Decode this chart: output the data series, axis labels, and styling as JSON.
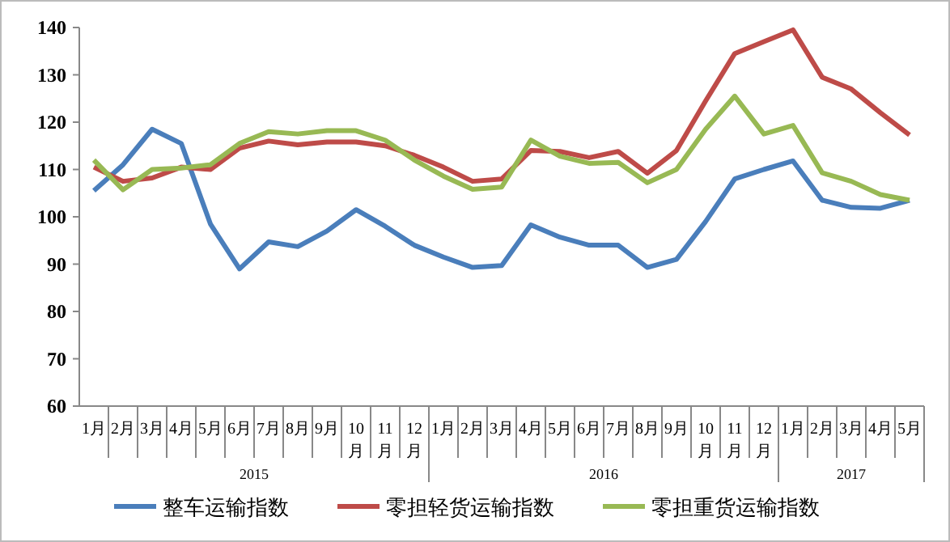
{
  "chart_data": {
    "type": "line",
    "categories": [
      "1月",
      "2月",
      "3月",
      "4月",
      "5月",
      "6月",
      "7月",
      "8月",
      "9月",
      "10月",
      "11月",
      "12月",
      "1月",
      "2月",
      "3月",
      "4月",
      "5月",
      "6月",
      "7月",
      "8月",
      "9月",
      "10月",
      "11月",
      "12月",
      "1月",
      "2月",
      "3月",
      "4月",
      "5月"
    ],
    "annotations": [
      "2015",
      "2016",
      "2017"
    ],
    "ylim": [
      60,
      140
    ],
    "yticks": [
      60,
      70,
      80,
      90,
      100,
      110,
      120,
      130,
      140
    ],
    "grid": false,
    "legend": "bottom",
    "marker": "none",
    "line_style": "solid",
    "series": [
      {
        "name": "整车运输指数",
        "color": "#4a7ebb",
        "values": [
          105.5,
          111,
          118.5,
          115.5,
          98.5,
          89,
          94.7,
          93.7,
          97,
          101.5,
          98,
          94,
          91.5,
          89.3,
          89.7,
          98.3,
          95.7,
          94,
          94,
          89.3,
          91,
          99,
          108,
          110,
          111.8,
          103.5,
          102,
          101.8,
          103.5
        ]
      },
      {
        "name": "零担轻货运输指数",
        "color": "#be4b48",
        "values": [
          110.5,
          107.5,
          108.2,
          110.5,
          110,
          114.5,
          116,
          115.2,
          115.8,
          115.8,
          115,
          113,
          110.5,
          107.5,
          108,
          114,
          113.8,
          112.5,
          113.8,
          109.2,
          114,
          124.5,
          134.5,
          137,
          139.5,
          129.5,
          127,
          122,
          117.3
        ]
      },
      {
        "name": "零担重货运输指数",
        "color": "#98b954",
        "values": [
          112,
          105.7,
          110,
          110.3,
          111,
          115.5,
          118,
          117.5,
          118.2,
          118.2,
          116.2,
          112,
          108.6,
          105.8,
          106.3,
          116.2,
          112.8,
          111.3,
          111.5,
          107.2,
          110,
          118.5,
          125.5,
          117.5,
          119.3,
          109.3,
          107.5,
          104.7,
          103.5
        ]
      }
    ]
  }
}
